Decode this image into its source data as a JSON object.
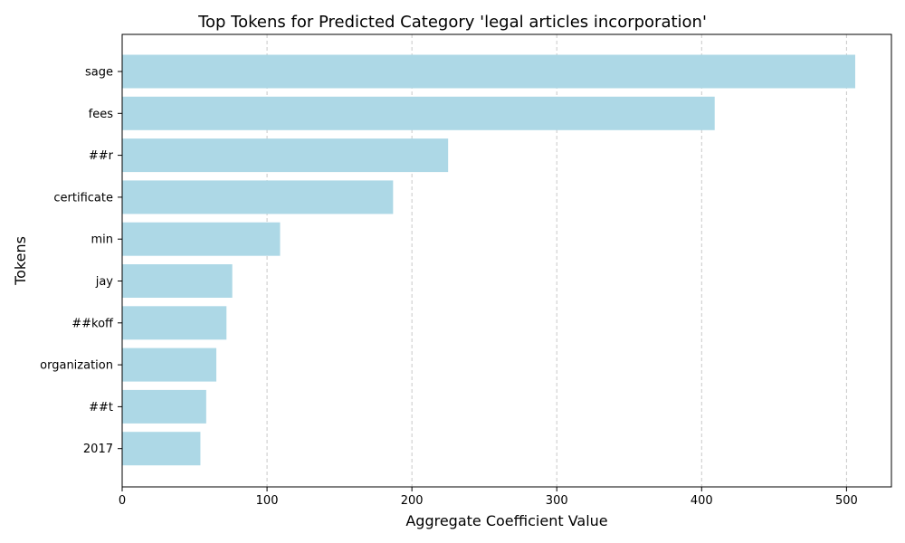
{
  "chart_data": {
    "type": "bar",
    "orientation": "horizontal",
    "title": "Top Tokens for Predicted Category 'legal articles incorporation'",
    "xlabel": "Aggregate Coefficient Value",
    "ylabel": "Tokens",
    "categories": [
      "sage",
      "fees",
      "##r",
      "certificate",
      "min",
      "jay",
      "##koff",
      "organization",
      "##t",
      "2017"
    ],
    "values": [
      506,
      409,
      225,
      187,
      109,
      76,
      72,
      65,
      58,
      54
    ],
    "xlim": [
      0,
      531
    ],
    "xticks": [
      0,
      100,
      200,
      300,
      400,
      500
    ],
    "grid": "x-axis, dashed",
    "legend": "none",
    "bar_color": "#add8e6"
  }
}
